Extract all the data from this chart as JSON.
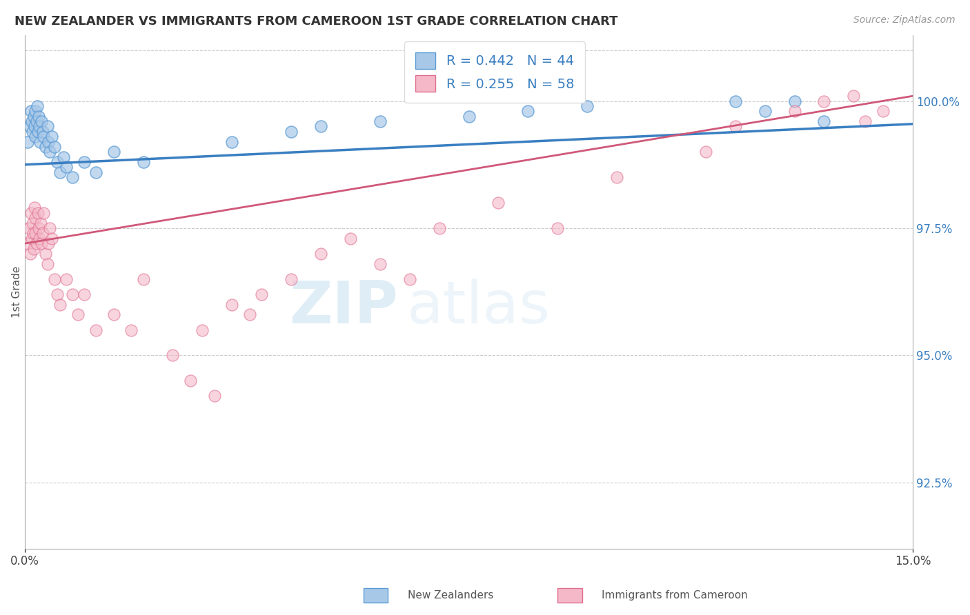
{
  "title": "NEW ZEALANDER VS IMMIGRANTS FROM CAMEROON 1ST GRADE CORRELATION CHART",
  "source": "Source: ZipAtlas.com",
  "ylabel": "1st Grade",
  "yticks": [
    92.5,
    95.0,
    97.5,
    100.0
  ],
  "ytick_labels": [
    "92.5%",
    "95.0%",
    "97.5%",
    "100.0%"
  ],
  "xlim": [
    0.0,
    15.0
  ],
  "ylim": [
    91.2,
    101.3
  ],
  "blue_R": 0.442,
  "blue_N": 44,
  "pink_R": 0.255,
  "pink_N": 58,
  "blue_color": "#a8c8e8",
  "blue_edge_color": "#5b9bd5",
  "blue_line_color": "#3a7fc1",
  "pink_color": "#f4b8c8",
  "pink_edge_color": "#e07090",
  "pink_line_color": "#d05878",
  "legend_label_blue": "New Zealanders",
  "legend_label_pink": "Immigrants from Cameroon",
  "watermark_zip": "ZIP",
  "watermark_atlas": "atlas",
  "blue_x": [
    0.05,
    0.08,
    0.1,
    0.12,
    0.13,
    0.15,
    0.16,
    0.17,
    0.18,
    0.2,
    0.21,
    0.22,
    0.23,
    0.25,
    0.26,
    0.28,
    0.3,
    0.32,
    0.35,
    0.38,
    0.4,
    0.42,
    0.45,
    0.5,
    0.55,
    0.6,
    0.65,
    0.7,
    0.8,
    1.0,
    1.2,
    1.5,
    2.0,
    3.5,
    4.5,
    5.0,
    6.0,
    7.5,
    8.5,
    9.5,
    12.0,
    12.5,
    13.0,
    13.5
  ],
  "blue_y": [
    99.2,
    99.5,
    99.8,
    99.6,
    99.4,
    99.7,
    99.5,
    99.3,
    99.8,
    99.6,
    99.9,
    99.4,
    99.7,
    99.5,
    99.2,
    99.6,
    99.4,
    99.3,
    99.1,
    99.5,
    99.2,
    99.0,
    99.3,
    99.1,
    98.8,
    98.6,
    98.9,
    98.7,
    98.5,
    98.8,
    98.6,
    99.0,
    98.8,
    99.2,
    99.4,
    99.5,
    99.6,
    99.7,
    99.8,
    99.9,
    100.0,
    99.8,
    100.0,
    99.6
  ],
  "pink_x": [
    0.05,
    0.07,
    0.09,
    0.1,
    0.12,
    0.13,
    0.14,
    0.15,
    0.16,
    0.17,
    0.18,
    0.2,
    0.22,
    0.23,
    0.25,
    0.27,
    0.28,
    0.3,
    0.32,
    0.35,
    0.38,
    0.4,
    0.42,
    0.45,
    0.5,
    0.55,
    0.6,
    0.7,
    0.8,
    0.9,
    1.0,
    1.2,
    1.5,
    1.8,
    2.0,
    2.5,
    3.0,
    3.5,
    3.8,
    4.5,
    5.0,
    5.5,
    6.5,
    7.0,
    8.0,
    9.0,
    10.0,
    11.5,
    12.0,
    13.0,
    13.5,
    14.0,
    14.2,
    14.5,
    2.8,
    3.2,
    4.0,
    6.0
  ],
  "pink_y": [
    97.2,
    97.5,
    97.0,
    97.8,
    97.3,
    97.6,
    97.4,
    97.1,
    97.9,
    97.7,
    97.4,
    97.2,
    97.8,
    97.5,
    97.3,
    97.6,
    97.2,
    97.4,
    97.8,
    97.0,
    96.8,
    97.2,
    97.5,
    97.3,
    96.5,
    96.2,
    96.0,
    96.5,
    96.2,
    95.8,
    96.2,
    95.5,
    95.8,
    95.5,
    96.5,
    95.0,
    95.5,
    96.0,
    95.8,
    96.5,
    97.0,
    97.3,
    96.5,
    97.5,
    98.0,
    97.5,
    98.5,
    99.0,
    99.5,
    99.8,
    100.0,
    100.1,
    99.6,
    99.8,
    94.5,
    94.2,
    96.2,
    96.8
  ]
}
